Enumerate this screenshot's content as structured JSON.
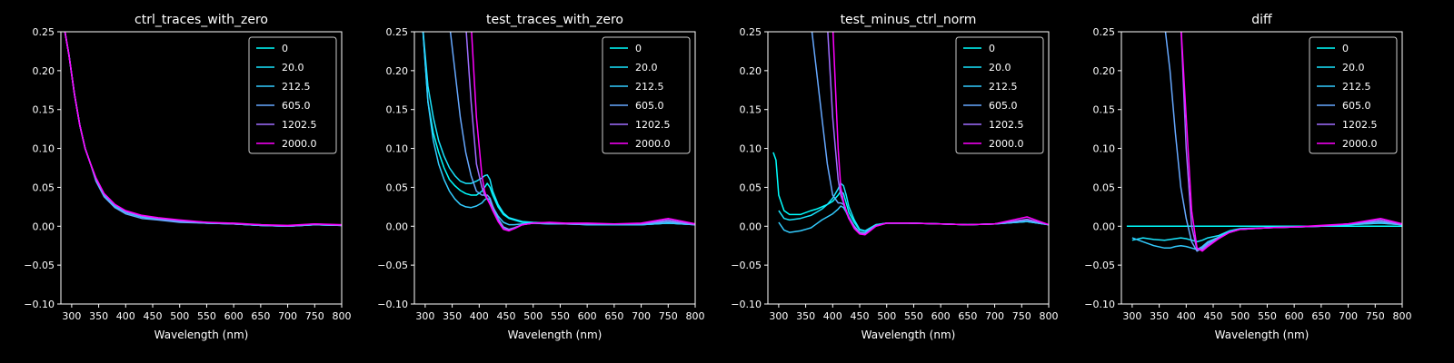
{
  "figure": {
    "background": "#000000",
    "foreground": "#ffffff"
  },
  "legend_entries": [
    "0",
    "20.0",
    "212.5",
    "605.0",
    "1202.5",
    "2000.0"
  ],
  "series_colors": [
    "#00ffff",
    "#19e6ff",
    "#33ccff",
    "#66a8ff",
    "#9f6eff",
    "#ff00ff"
  ],
  "chart_data": [
    {
      "type": "line",
      "title": "ctrl_traces_with_zero",
      "xlabel": "Wavelength (nm)",
      "ylabel": "",
      "xlim": [
        280,
        800
      ],
      "ylim": [
        -0.1,
        0.25
      ],
      "xticks": [
        300,
        350,
        400,
        450,
        500,
        550,
        600,
        650,
        700,
        750,
        800
      ],
      "yticks": [
        -0.1,
        -0.05,
        0.0,
        0.05,
        0.1,
        0.15,
        0.2,
        0.25
      ],
      "grid": false,
      "legend": "top-right",
      "x": [
        285,
        295,
        305,
        315,
        325,
        335,
        345,
        360,
        380,
        400,
        430,
        460,
        500,
        550,
        600,
        650,
        700,
        750,
        800
      ],
      "series": [
        {
          "name": "0",
          "values": [
            0.26,
            0.22,
            0.17,
            0.13,
            0.1,
            0.08,
            0.06,
            0.04,
            0.026,
            0.018,
            0.012,
            0.009,
            0.006,
            0.004,
            0.003,
            0.001,
            0.0,
            0.002,
            0.001
          ]
        },
        {
          "name": "20.0",
          "values": [
            0.26,
            0.22,
            0.17,
            0.13,
            0.1,
            0.08,
            0.06,
            0.04,
            0.026,
            0.018,
            0.012,
            0.009,
            0.006,
            0.004,
            0.003,
            0.001,
            0.0,
            0.002,
            0.001
          ]
        },
        {
          "name": "212.5",
          "values": [
            0.26,
            0.22,
            0.17,
            0.13,
            0.1,
            0.08,
            0.06,
            0.04,
            0.026,
            0.018,
            0.012,
            0.009,
            0.006,
            0.004,
            0.003,
            0.001,
            0.0,
            0.002,
            0.001
          ]
        },
        {
          "name": "605.0",
          "values": [
            0.26,
            0.22,
            0.17,
            0.13,
            0.1,
            0.08,
            0.058,
            0.038,
            0.024,
            0.016,
            0.01,
            0.008,
            0.005,
            0.004,
            0.003,
            0.001,
            0.0,
            0.002,
            0.001
          ]
        },
        {
          "name": "1202.5",
          "values": [
            0.26,
            0.22,
            0.17,
            0.13,
            0.1,
            0.08,
            0.062,
            0.042,
            0.028,
            0.019,
            0.013,
            0.01,
            0.007,
            0.005,
            0.003,
            0.002,
            0.0,
            0.003,
            0.001
          ]
        },
        {
          "name": "2000.0",
          "values": [
            0.26,
            0.22,
            0.17,
            0.13,
            0.1,
            0.08,
            0.062,
            0.042,
            0.028,
            0.02,
            0.014,
            0.011,
            0.008,
            0.005,
            0.004,
            0.002,
            0.001,
            0.003,
            0.002
          ]
        }
      ]
    },
    {
      "type": "line",
      "title": "test_traces_with_zero",
      "xlabel": "Wavelength (nm)",
      "ylabel": "",
      "xlim": [
        280,
        800
      ],
      "ylim": [
        -0.1,
        0.25
      ],
      "xticks": [
        300,
        350,
        400,
        450,
        500,
        550,
        600,
        650,
        700,
        750,
        800
      ],
      "yticks": [
        -0.1,
        -0.05,
        0.0,
        0.05,
        0.1,
        0.15,
        0.2,
        0.25
      ],
      "grid": false,
      "legend": "top-right",
      "x": [
        295,
        305,
        315,
        325,
        335,
        345,
        355,
        365,
        375,
        385,
        395,
        405,
        410,
        415,
        420,
        425,
        435,
        445,
        455,
        465,
        480,
        500,
        530,
        560,
        600,
        650,
        700,
        750,
        800
      ],
      "series": [
        {
          "name": "0",
          "values": [
            0.26,
            0.16,
            0.12,
            0.095,
            0.075,
            0.06,
            0.052,
            0.046,
            0.042,
            0.04,
            0.04,
            0.045,
            0.05,
            0.055,
            0.05,
            0.04,
            0.025,
            0.015,
            0.01,
            0.008,
            0.005,
            0.004,
            0.003,
            0.003,
            0.002,
            0.002,
            0.002,
            0.004,
            0.002
          ]
        },
        {
          "name": "20.0",
          "values": [
            0.26,
            0.18,
            0.14,
            0.11,
            0.09,
            0.075,
            0.065,
            0.058,
            0.055,
            0.055,
            0.058,
            0.062,
            0.065,
            0.066,
            0.06,
            0.045,
            0.028,
            0.017,
            0.011,
            0.009,
            0.006,
            0.005,
            0.004,
            0.003,
            0.003,
            0.002,
            0.002,
            0.004,
            0.002
          ]
        },
        {
          "name": "212.5",
          "values": [
            0.26,
            0.16,
            0.11,
            0.08,
            0.06,
            0.045,
            0.035,
            0.028,
            0.025,
            0.024,
            0.026,
            0.03,
            0.034,
            0.036,
            0.034,
            0.025,
            0.013,
            0.005,
            0.002,
            0.002,
            0.003,
            0.004,
            0.003,
            0.003,
            0.002,
            0.002,
            0.002,
            0.004,
            0.002
          ]
        },
        {
          "name": "605.0",
          "values": [
            null,
            null,
            null,
            null,
            null,
            0.26,
            0.2,
            0.14,
            0.095,
            0.065,
            0.045,
            0.04,
            0.04,
            0.04,
            0.036,
            0.026,
            0.01,
            -0.001,
            -0.004,
            -0.002,
            0.002,
            0.004,
            0.004,
            0.003,
            0.003,
            0.003,
            0.003,
            0.006,
            0.002
          ]
        },
        {
          "name": "1202.5",
          "values": [
            null,
            null,
            null,
            null,
            null,
            null,
            null,
            null,
            0.26,
            0.16,
            0.08,
            0.05,
            0.04,
            0.035,
            0.03,
            0.022,
            0.008,
            -0.003,
            -0.005,
            -0.003,
            0.002,
            0.004,
            0.004,
            0.003,
            0.003,
            0.003,
            0.003,
            0.008,
            0.002
          ]
        },
        {
          "name": "2000.0",
          "values": [
            null,
            null,
            null,
            null,
            null,
            null,
            null,
            null,
            null,
            0.26,
            0.14,
            0.065,
            0.045,
            0.035,
            0.028,
            0.02,
            0.006,
            -0.004,
            -0.006,
            -0.003,
            0.002,
            0.004,
            0.005,
            0.004,
            0.004,
            0.003,
            0.004,
            0.01,
            0.003
          ]
        }
      ]
    },
    {
      "type": "line",
      "title": "test_minus_ctrl_norm",
      "xlabel": "Wavelength (nm)",
      "ylabel": "",
      "xlim": [
        280,
        800
      ],
      "ylim": [
        -0.1,
        0.25
      ],
      "xticks": [
        300,
        350,
        400,
        450,
        500,
        550,
        600,
        650,
        700,
        750,
        800
      ],
      "yticks": [
        -0.1,
        -0.05,
        0.0,
        0.05,
        0.1,
        0.15,
        0.2,
        0.25
      ],
      "grid": false,
      "legend": "top-right",
      "x": [
        290,
        295,
        300,
        310,
        320,
        340,
        360,
        370,
        380,
        390,
        400,
        410,
        415,
        420,
        425,
        430,
        440,
        450,
        460,
        480,
        500,
        540,
        600,
        650,
        700,
        760,
        800
      ],
      "series": [
        {
          "name": "0",
          "values": [
            0.095,
            0.085,
            0.04,
            0.02,
            0.015,
            0.015,
            0.02,
            0.022,
            0.025,
            0.028,
            0.032,
            0.04,
            0.045,
            0.042,
            0.03,
            0.018,
            0.005,
            -0.005,
            -0.006,
            0.002,
            0.004,
            0.004,
            0.003,
            0.002,
            0.003,
            0.006,
            0.002
          ]
        },
        {
          "name": "20.0",
          "values": [
            null,
            null,
            0.02,
            0.01,
            0.008,
            0.01,
            0.014,
            0.018,
            0.022,
            0.028,
            0.036,
            0.048,
            0.055,
            0.052,
            0.04,
            0.025,
            0.008,
            -0.004,
            -0.006,
            0.002,
            0.004,
            0.004,
            0.003,
            0.002,
            0.003,
            0.006,
            0.002
          ]
        },
        {
          "name": "212.5",
          "values": [
            null,
            null,
            0.005,
            -0.005,
            -0.008,
            -0.006,
            -0.002,
            0.003,
            0.008,
            0.012,
            0.016,
            0.022,
            0.026,
            0.024,
            0.018,
            0.01,
            0.0,
            -0.008,
            -0.008,
            0.001,
            0.004,
            0.004,
            0.003,
            0.002,
            0.003,
            0.006,
            0.002
          ]
        },
        {
          "name": "605.0",
          "values": [
            null,
            null,
            null,
            null,
            null,
            null,
            0.26,
            0.2,
            0.14,
            0.08,
            0.04,
            0.03,
            0.03,
            0.028,
            0.02,
            0.012,
            0.0,
            -0.008,
            -0.009,
            0.001,
            0.004,
            0.004,
            0.003,
            0.002,
            0.003,
            0.008,
            0.002
          ]
        },
        {
          "name": "1202.5",
          "values": [
            null,
            null,
            null,
            null,
            null,
            null,
            null,
            null,
            null,
            0.26,
            0.14,
            0.06,
            0.04,
            0.03,
            0.02,
            0.01,
            -0.002,
            -0.009,
            -0.01,
            0.0,
            0.004,
            0.004,
            0.003,
            0.002,
            0.003,
            0.009,
            0.002
          ]
        },
        {
          "name": "2000.0",
          "values": [
            null,
            null,
            null,
            null,
            null,
            null,
            null,
            null,
            null,
            null,
            0.26,
            0.1,
            0.05,
            0.032,
            0.02,
            0.01,
            -0.003,
            -0.01,
            -0.011,
            0.0,
            0.004,
            0.004,
            0.003,
            0.002,
            0.003,
            0.012,
            0.002
          ]
        }
      ]
    },
    {
      "type": "line",
      "title": "diff",
      "xlabel": "Wavelength (nm)",
      "ylabel": "",
      "xlim": [
        280,
        800
      ],
      "ylim": [
        -0.1,
        0.25
      ],
      "xticks": [
        300,
        350,
        400,
        450,
        500,
        550,
        600,
        650,
        700,
        750,
        800
      ],
      "yticks": [
        -0.1,
        -0.05,
        0.0,
        0.05,
        0.1,
        0.15,
        0.2,
        0.25
      ],
      "grid": false,
      "legend": "top-right",
      "x": [
        290,
        300,
        320,
        340,
        360,
        370,
        380,
        390,
        400,
        410,
        420,
        430,
        440,
        460,
        480,
        500,
        550,
        600,
        650,
        700,
        760,
        800
      ],
      "series": [
        {
          "name": "0",
          "values": [
            0.0,
            0.0,
            0.0,
            0.0,
            0.0,
            0.0,
            0.0,
            0.0,
            0.0,
            0.0,
            0.0,
            0.0,
            0.0,
            0.0,
            0.0,
            0.0,
            0.0,
            0.0,
            0.0,
            0.0,
            0.0,
            0.0
          ]
        },
        {
          "name": "20.0",
          "values": [
            null,
            -0.018,
            -0.015,
            -0.017,
            -0.018,
            -0.017,
            -0.016,
            -0.015,
            -0.016,
            -0.018,
            -0.02,
            -0.018,
            -0.015,
            -0.012,
            -0.006,
            -0.003,
            -0.002,
            -0.001,
            0.0,
            0.002,
            0.004,
            0.002
          ]
        },
        {
          "name": "212.5",
          "values": [
            null,
            -0.015,
            -0.02,
            -0.025,
            -0.028,
            -0.028,
            -0.026,
            -0.025,
            -0.026,
            -0.028,
            -0.03,
            -0.026,
            -0.02,
            -0.014,
            -0.007,
            -0.004,
            -0.002,
            -0.001,
            0.0,
            0.002,
            0.004,
            0.002
          ]
        },
        {
          "name": "605.0",
          "values": [
            null,
            null,
            null,
            null,
            0.26,
            0.2,
            0.12,
            0.05,
            0.01,
            -0.02,
            -0.032,
            -0.028,
            -0.022,
            -0.015,
            -0.008,
            -0.004,
            -0.002,
            -0.001,
            0.0,
            0.003,
            0.006,
            0.002
          ]
        },
        {
          "name": "1202.5",
          "values": [
            null,
            null,
            null,
            null,
            null,
            null,
            null,
            0.26,
            0.1,
            0.0,
            -0.03,
            -0.03,
            -0.024,
            -0.016,
            -0.008,
            -0.004,
            -0.002,
            -0.001,
            0.0,
            0.003,
            0.008,
            0.002
          ]
        },
        {
          "name": "2000.0",
          "values": [
            null,
            null,
            null,
            null,
            null,
            null,
            null,
            0.26,
            0.14,
            0.02,
            -0.028,
            -0.032,
            -0.026,
            -0.016,
            -0.008,
            -0.004,
            -0.002,
            -0.001,
            0.001,
            0.003,
            0.01,
            0.003
          ]
        }
      ]
    }
  ]
}
